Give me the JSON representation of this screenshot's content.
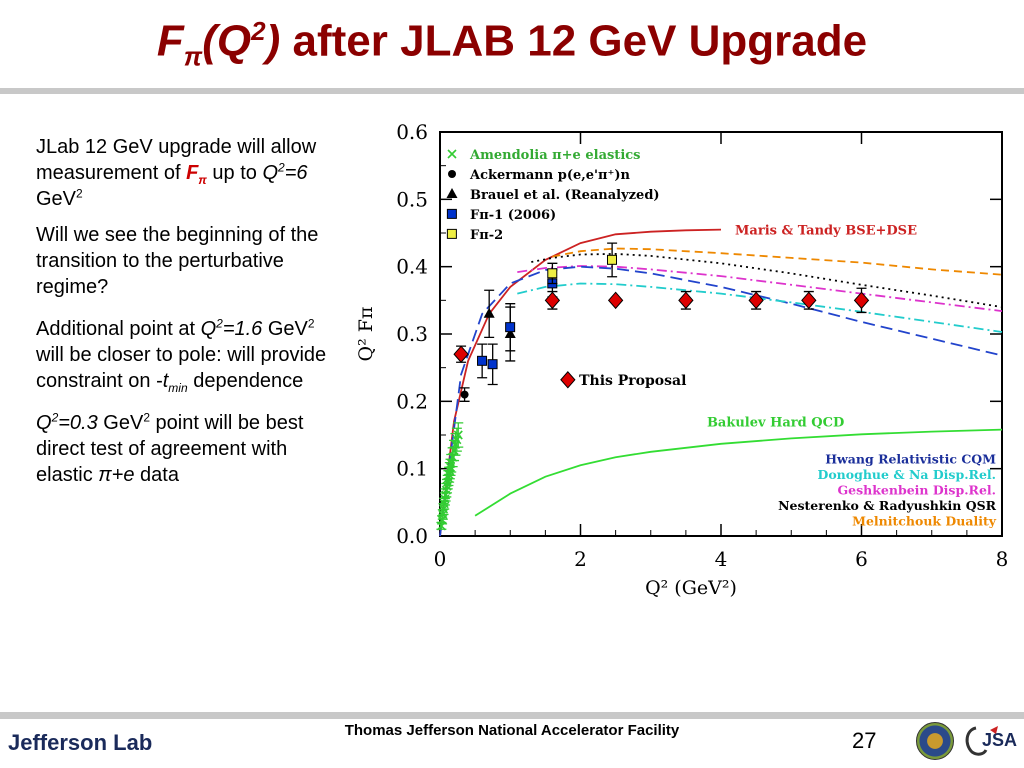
{
  "slide": {
    "title_f": "F",
    "title_pi": "π",
    "title_q": "(Q",
    "title_exp": "2",
    "title_close": ")",
    "title_rest": " after JLAB 12 GeV Upgrade",
    "page_number": "27",
    "footer": "Thomas Jefferson National Accelerator Facility",
    "logo_text": "Jefferson Lab",
    "jsa_text": "JSA"
  },
  "bullets": {
    "b1_a": "JLab 12 GeV upgrade will allow measurement of ",
    "b1_f": "F",
    "b1_pi": "π",
    "b1_b": " up to ",
    "b1_q": "Q",
    "b1_exp": "2",
    "b1_val": "=6",
    "b1_unit": " GeV",
    "b1_unit_exp": "2",
    "b2": "Will we see the beginning of the transition to the perturbative regime?",
    "b3_a": "Additional point at ",
    "b3_q": "Q",
    "b3_exp": "2",
    "b3_val": "=1.6",
    "b3_unit": " GeV",
    "b3_unit_exp": "2",
    "b3_b": " will be closer to pole: will provide constraint on -",
    "b3_t": "t",
    "b3_tsub": "min",
    "b3_c": " dependence",
    "b4_q": "Q",
    "b4_exp": "2",
    "b4_val": "=0.3",
    "b4_unit": " GeV",
    "b4_unit_exp": "2",
    "b4_a": " point will be best direct test of agreement with elastic ",
    "b4_pie": "π+e",
    "b4_b": " data"
  },
  "chart_data": {
    "type": "scatter",
    "xlabel": "Q² (GeV²)",
    "ylabel": "Q² Fπ",
    "xlim": [
      0,
      8
    ],
    "ylim": [
      0,
      0.6
    ],
    "xticks": [
      0,
      2,
      4,
      6,
      8
    ],
    "yticks": [
      0.0,
      0.1,
      0.2,
      0.3,
      0.4,
      0.5,
      0.6
    ],
    "ytick_labels": [
      "0.0",
      "0.1",
      "0.2",
      "0.3",
      "0.4",
      "0.5",
      "0.6"
    ],
    "data_series": [
      {
        "name": "Amendolia π+e elastics",
        "marker": "x",
        "color": "#33cc33",
        "x": [
          0.02,
          0.03,
          0.04,
          0.05,
          0.06,
          0.07,
          0.08,
          0.09,
          0.1,
          0.11,
          0.12,
          0.13,
          0.14,
          0.15,
          0.16,
          0.18,
          0.2,
          0.22,
          0.24,
          0.26
        ],
        "y": [
          0.015,
          0.024,
          0.032,
          0.04,
          0.048,
          0.055,
          0.061,
          0.068,
          0.074,
          0.08,
          0.086,
          0.091,
          0.097,
          0.102,
          0.108,
          0.117,
          0.127,
          0.136,
          0.143,
          0.15
        ],
        "err": [
          0.005,
          0.006,
          0.007,
          0.008,
          0.008,
          0.009,
          0.009,
          0.01,
          0.01,
          0.01,
          0.011,
          0.011,
          0.012,
          0.012,
          0.013,
          0.014,
          0.015,
          0.016,
          0.017,
          0.018
        ]
      },
      {
        "name": "Ackermann p(e,e'π⁺)n",
        "marker": "circle",
        "color": "#000000",
        "x": [
          0.35
        ],
        "y": [
          0.21
        ],
        "err": [
          0.01
        ]
      },
      {
        "name": "Brauel et al. (Reanalyzed)",
        "marker": "triangle",
        "color": "#000000",
        "x": [
          0.7,
          1.0
        ],
        "y": [
          0.33,
          0.3
        ],
        "err": [
          0.035,
          0.04
        ]
      },
      {
        "name": "Fπ-1 (2006)",
        "marker": "square",
        "color": "#0033cc",
        "x": [
          0.6,
          0.75,
          1.0,
          1.6
        ],
        "y": [
          0.26,
          0.255,
          0.31,
          0.375
        ],
        "err": [
          0.025,
          0.03,
          0.035,
          0.02
        ]
      },
      {
        "name": "Fπ-2",
        "marker": "square",
        "color": "#eeee44",
        "x": [
          1.6,
          2.45
        ],
        "y": [
          0.39,
          0.41
        ],
        "err": [
          0.015,
          0.025
        ]
      },
      {
        "name": "This Proposal",
        "marker": "diamond",
        "color": "#dd0000",
        "x": [
          0.3,
          1.6,
          2.5,
          3.5,
          4.5,
          5.25,
          6.0
        ],
        "y": [
          0.27,
          0.35,
          0.35,
          0.35,
          0.35,
          0.35,
          0.35
        ],
        "err": [
          0.012,
          0.013,
          0.0,
          0.013,
          0.013,
          0.013,
          0.018
        ]
      }
    ],
    "curves": [
      {
        "name": "Maris & Tandy BSE+DSE",
        "color": "#cc2222",
        "dash": "solid",
        "x": [
          0.0,
          0.2,
          0.4,
          0.7,
          1.0,
          1.5,
          2.0,
          2.5,
          3.0,
          3.5,
          4.0
        ],
        "y": [
          0.0,
          0.17,
          0.26,
          0.33,
          0.37,
          0.41,
          0.435,
          0.448,
          0.452,
          0.454,
          0.455
        ]
      },
      {
        "name": "Melnitchouk Duality",
        "color": "#ee8800",
        "dash": "8,5",
        "x": [
          1.6,
          2.0,
          2.5,
          3.0,
          4.0,
          5.0,
          6.0,
          7.0,
          8.0
        ],
        "y": [
          0.415,
          0.423,
          0.427,
          0.426,
          0.42,
          0.413,
          0.406,
          0.396,
          0.388
        ]
      },
      {
        "name": "Nesterenko & Radyushkin QSR",
        "color": "#000000",
        "dash": "2,4",
        "x": [
          1.3,
          1.6,
          2.0,
          2.5,
          3.0,
          4.0,
          5.0,
          6.0,
          7.0,
          8.0
        ],
        "y": [
          0.407,
          0.413,
          0.418,
          0.419,
          0.416,
          0.405,
          0.39,
          0.373,
          0.357,
          0.34
        ]
      },
      {
        "name": "Geshkenbein Disp.Rel.",
        "color": "#dd33cc",
        "dash": "10,4,2,4",
        "x": [
          1.1,
          1.5,
          2.0,
          2.5,
          3.0,
          4.0,
          5.0,
          6.0,
          7.0,
          8.0
        ],
        "y": [
          0.392,
          0.398,
          0.401,
          0.4,
          0.396,
          0.386,
          0.373,
          0.36,
          0.347,
          0.334
        ]
      },
      {
        "name": "Hwang Relativistic CQM",
        "color": "#2244cc",
        "dash": "12,6",
        "x": [
          0.0,
          0.3,
          0.6,
          1.0,
          1.5,
          2.0,
          2.5,
          3.0,
          4.0,
          5.0,
          6.0,
          7.0,
          8.0
        ],
        "y": [
          0.0,
          0.24,
          0.33,
          0.375,
          0.395,
          0.4,
          0.397,
          0.39,
          0.37,
          0.345,
          0.318,
          0.293,
          0.268
        ]
      },
      {
        "name": "Donoghue & Na Disp.Rel.",
        "color": "#22cccc",
        "dash": "10,4,2,4",
        "x": [
          1.1,
          1.5,
          2.0,
          2.5,
          3.0,
          4.0,
          5.0,
          6.0,
          7.0,
          8.0
        ],
        "y": [
          0.36,
          0.37,
          0.375,
          0.374,
          0.37,
          0.36,
          0.347,
          0.333,
          0.318,
          0.303
        ]
      },
      {
        "name": "Bakulev Hard QCD",
        "color": "#33dd33",
        "dash": "solid",
        "x": [
          0.5,
          1.0,
          1.5,
          2.0,
          2.5,
          3.0,
          4.0,
          5.0,
          6.0,
          7.0,
          8.0
        ],
        "y": [
          0.03,
          0.063,
          0.088,
          0.105,
          0.117,
          0.125,
          0.137,
          0.145,
          0.151,
          0.155,
          0.158
        ]
      }
    ],
    "legend_labels": [
      "Amendolia π+e elastics",
      "Ackermann p(e,e'π⁺)n",
      "Brauel et al. (Reanalyzed)",
      "Fπ-1 (2006)",
      "Fπ-2"
    ],
    "curve_labels": [
      "Maris & Tandy BSE+DSE",
      "Bakulev Hard QCD",
      "This Proposal"
    ],
    "model_legend": [
      {
        "name": "Hwang Relativistic CQM",
        "color": "#1a2e9a"
      },
      {
        "name": "Donoghue & Na Disp.Rel.",
        "color": "#22cccc"
      },
      {
        "name": "Geshkenbein Disp.Rel.",
        "color": "#dd33cc"
      },
      {
        "name": "Nesterenko & Radyushkin QSR",
        "color": "#000000"
      },
      {
        "name": "Melnitchouk Duality",
        "color": "#ee8800"
      }
    ]
  }
}
